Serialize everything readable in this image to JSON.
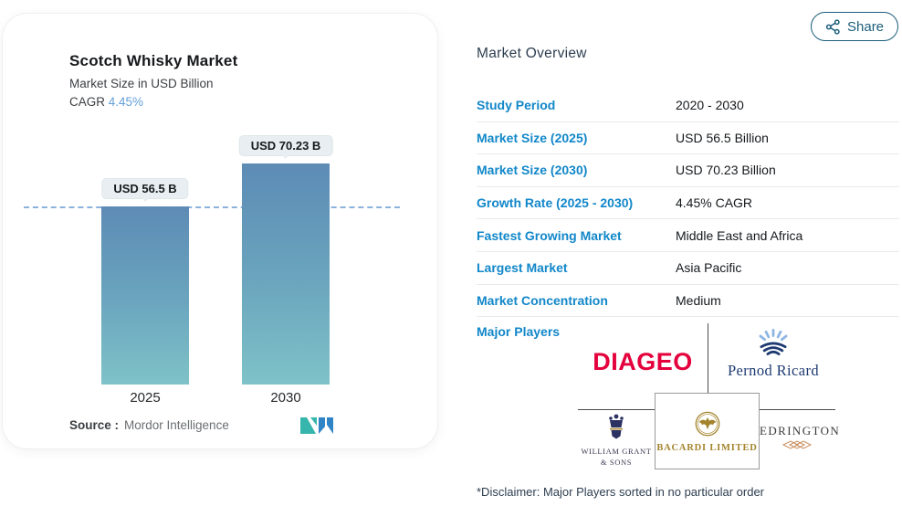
{
  "share": {
    "label": "Share"
  },
  "chart_card": {
    "title": "Scotch Whisky Market",
    "subtitle": "Market Size in USD Billion",
    "cagr_label": "CAGR",
    "cagr_value": "4.45%",
    "source_label": "Source :",
    "source_value": "Mordor Intelligence"
  },
  "chart_data": {
    "type": "bar",
    "title": "Scotch Whisky Market",
    "subtitle": "Market Size in USD Billion",
    "unit": "USD Billion",
    "categories": [
      "2025",
      "2030"
    ],
    "values": [
      56.5,
      70.23
    ],
    "bar_labels": [
      "USD 56.5 B",
      "USD 70.23 B"
    ],
    "reference_line_value": 56.5,
    "ylim": [
      0,
      80
    ],
    "grid": false,
    "cagr": "4.45%",
    "legend": "none",
    "source": "Mordor Intelligence"
  },
  "overview": {
    "heading": "Market Overview",
    "rows": [
      {
        "label": "Study Period",
        "value": "2020 - 2030"
      },
      {
        "label": "Market Size (2025)",
        "value": "USD 56.5 Billion"
      },
      {
        "label": "Market Size (2030)",
        "value": "USD 70.23 Billion"
      },
      {
        "label": "Growth Rate (2025 - 2030)",
        "value": "4.45% CAGR"
      },
      {
        "label": "Fastest Growing Market",
        "value": "Middle East and Africa"
      },
      {
        "label": "Largest Market",
        "value": "Asia Pacific"
      },
      {
        "label": "Market Concentration",
        "value": "Medium"
      }
    ],
    "major_players_label": "Major Players",
    "major_players": [
      "DIAGEO",
      "Pernod Ricard",
      "William Grant & Sons",
      "Bacardi Limited",
      "Edrington"
    ],
    "disclaimer": "*Disclaimer: Major Players sorted in no particular order"
  },
  "logos": {
    "diageo": "DIAGEO",
    "pernod_ricard": "Pernod Ricard",
    "william_grant_line1": "WILLIAM GRANT",
    "william_grant_line2": "& SONS",
    "bacardi": "BACARDI LIMITED",
    "edrington": "EDRINGTON"
  },
  "icons": {
    "share": "share-nodes",
    "mordor_logo": "mordor-intelligence-m-mark",
    "pernod": "sun-over-waves",
    "william_grant": "heraldic-crest",
    "bacardi": "bat-emblem",
    "edrington": "diamond-pattern"
  },
  "colors": {
    "link_blue": "#1287c9",
    "cagr_blue": "#64a0d8",
    "share_teal": "#1b5d7b",
    "diageo_red": "#e4003c",
    "pernod_navy": "#1e3a72",
    "bacardi_gold": "#a3842c",
    "edrington_copper": "#c98e5f",
    "bar_top": "#5d8bb5",
    "bar_bottom": "#7fc2c8",
    "dashed_line": "#8ab2dc",
    "heading_dark": "#2d3e50"
  }
}
